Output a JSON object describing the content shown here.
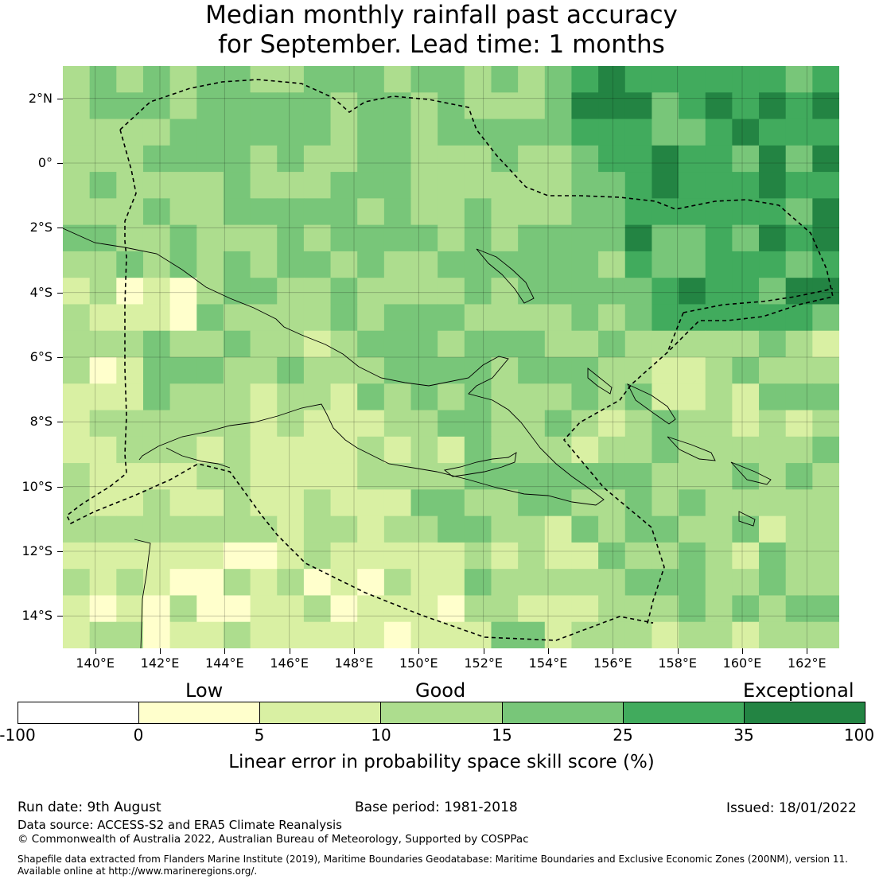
{
  "title_line1": "Median monthly rainfall past accuracy",
  "title_line2": "for September. Lead time: 1 months",
  "map": {
    "lat_ticks": [
      "2°N",
      "0°",
      "2°S",
      "4°S",
      "6°S",
      "8°S",
      "10°S",
      "12°S",
      "14°S"
    ],
    "lon_ticks": [
      "140°E",
      "142°E",
      "144°E",
      "146°E",
      "148°E",
      "150°E",
      "152°E",
      "154°E",
      "156°E",
      "158°E",
      "160°E",
      "162°E"
    ],
    "lat_range": [
      -15,
      3
    ],
    "lon_range": [
      139,
      163
    ]
  },
  "legend": {
    "categories": [
      "Low",
      "Good",
      "Exceptional"
    ],
    "ticks": [
      "-100",
      "0",
      "5",
      "10",
      "15",
      "25",
      "35",
      "100"
    ],
    "colors": [
      "#ffffff",
      "#ffffcc",
      "#d9f0a3",
      "#addd8e",
      "#78c679",
      "#41ab5d",
      "#238443"
    ],
    "label": "Linear error in probability space skill score (%)"
  },
  "footer": {
    "run_date": "Run date: 9th August",
    "base_period": "Base period: 1981-2018",
    "issued": "Issued: 18/01/2022",
    "data_source": "Data source: ACCESS-S2 and ERA5 Climate Reanalysis",
    "copyright": "© Commonwealth of Australia 2022, Australian Bureau of Meteorology, Supported by COSPPac",
    "shapefile_line1": "Shapefile data extracted from Flanders Marine Institute (2019), Maritime Boundaries Geodatabase: Maritime Boundaries and Exclusive Economic Zones (200NM), version 11.",
    "shapefile_line2": "Available online at http://www.marineregions.org/."
  }
}
